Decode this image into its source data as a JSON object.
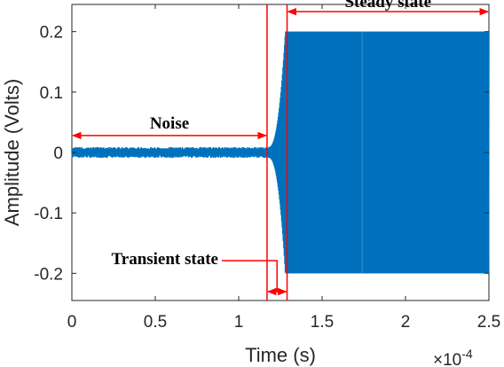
{
  "chart_data": {
    "type": "line",
    "xlabel": "Time (s)",
    "ylabel": "Amplitude (Volts)",
    "x_multiplier": {
      "base": "×10",
      "exponent": "-4"
    },
    "xlim": [
      0,
      2.5
    ],
    "ylim": [
      -0.245,
      0.245
    ],
    "x_ticks": [
      0,
      0.5,
      1,
      1.5,
      2,
      2.5
    ],
    "x_tick_labels": [
      "0",
      "0.5",
      "1",
      "1.5",
      "2",
      "2.5"
    ],
    "y_ticks": [
      -0.2,
      -0.1,
      0,
      0.1,
      0.2
    ],
    "y_tick_labels": [
      "-0.2",
      "-0.1",
      "0",
      "0.1",
      "0.2"
    ],
    "grid": false,
    "series": [
      {
        "color": "#0072BD",
        "segments": {
          "noise": {
            "x_start": 0,
            "x_end": 1.18,
            "amplitude": 0.009
          },
          "transient": {
            "x_start": 1.18,
            "x_end": 1.28,
            "amplitude_start": 0.009,
            "amplitude_end": 0.2
          },
          "steady": {
            "x_start": 1.28,
            "x_end": 2.5,
            "amplitude": 0.2
          }
        }
      }
    ],
    "annotation_color": "#FF0000",
    "boundaries": [
      1.17,
      1.29
    ],
    "annotations": {
      "noise": {
        "label": "Noise",
        "x_from": 0,
        "x_to": 1.17,
        "y": 0.028
      },
      "steady": {
        "label": "Steady state",
        "x_from": 1.29,
        "x_to": 2.5,
        "y": 0.233
      },
      "transient": {
        "label": "Transient state",
        "x_from": 1.17,
        "x_to": 1.29,
        "y": -0.231
      }
    }
  }
}
